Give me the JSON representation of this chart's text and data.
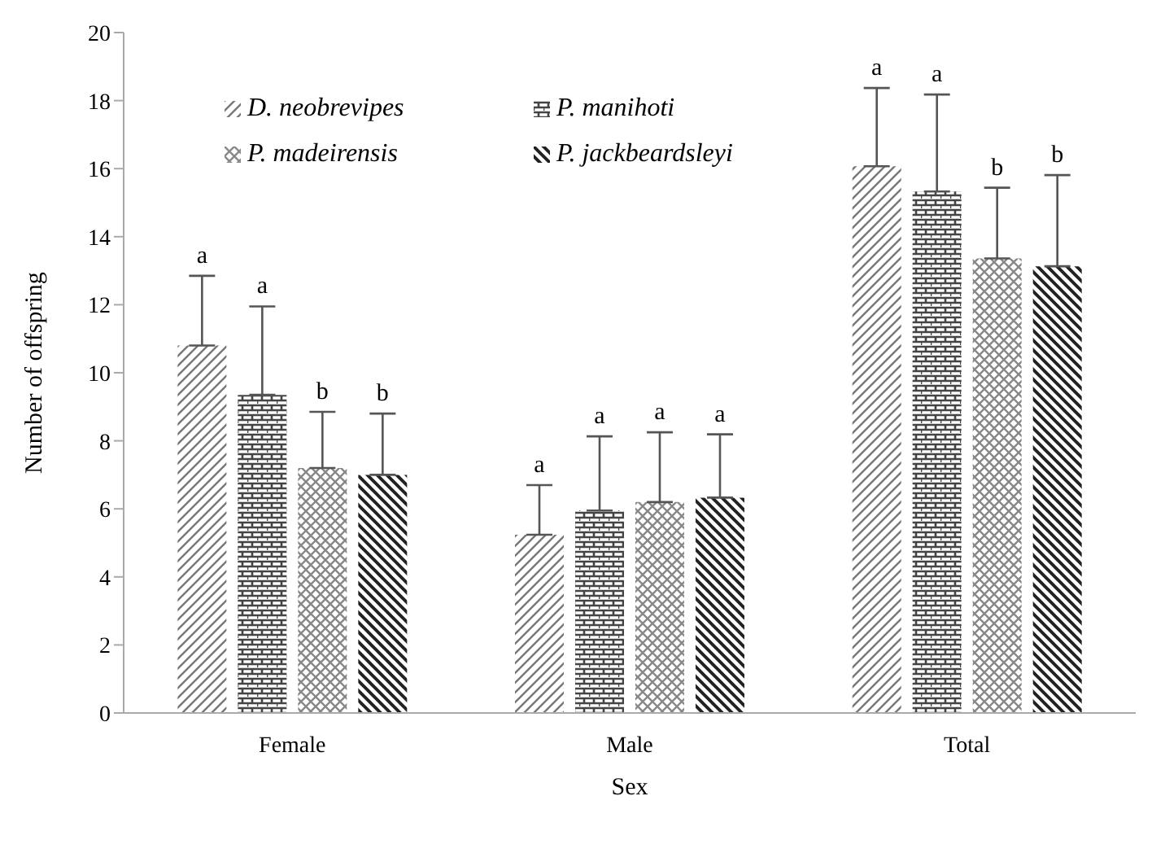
{
  "chart_data": {
    "type": "bar",
    "xlabel": "Sex",
    "ylabel": "Number of offspring",
    "categories": [
      "Female",
      "Male",
      "Total"
    ],
    "series": [
      {
        "name": "D. neobrevipes",
        "color": "#777777",
        "values": [
          10.8,
          5.24,
          16.07
        ],
        "errors": [
          2.05,
          1.46,
          2.3
        ]
      },
      {
        "name": "P. manihoti",
        "color": "#444444",
        "values": [
          9.35,
          5.95,
          15.33
        ],
        "errors": [
          2.6,
          2.18,
          2.85
        ]
      },
      {
        "name": "P. madeirensis",
        "color": "#888888",
        "values": [
          7.2,
          6.2,
          13.36
        ],
        "errors": [
          1.65,
          2.05,
          2.08
        ]
      },
      {
        "name": "P. jackbeardsleyi",
        "color": "#222222",
        "values": [
          7.0,
          6.33,
          13.13
        ],
        "errors": [
          1.8,
          1.86,
          2.68
        ]
      }
    ],
    "ylim": [
      0,
      20
    ],
    "yticks": [
      0,
      2,
      4,
      6,
      8,
      10,
      12,
      14,
      16,
      18,
      20
    ],
    "grid": false,
    "legend": "top left",
    "annotations": [
      "a",
      "a",
      "b",
      "b",
      "a",
      "a",
      "a",
      "a",
      "a",
      "a",
      "b",
      "b"
    ]
  }
}
